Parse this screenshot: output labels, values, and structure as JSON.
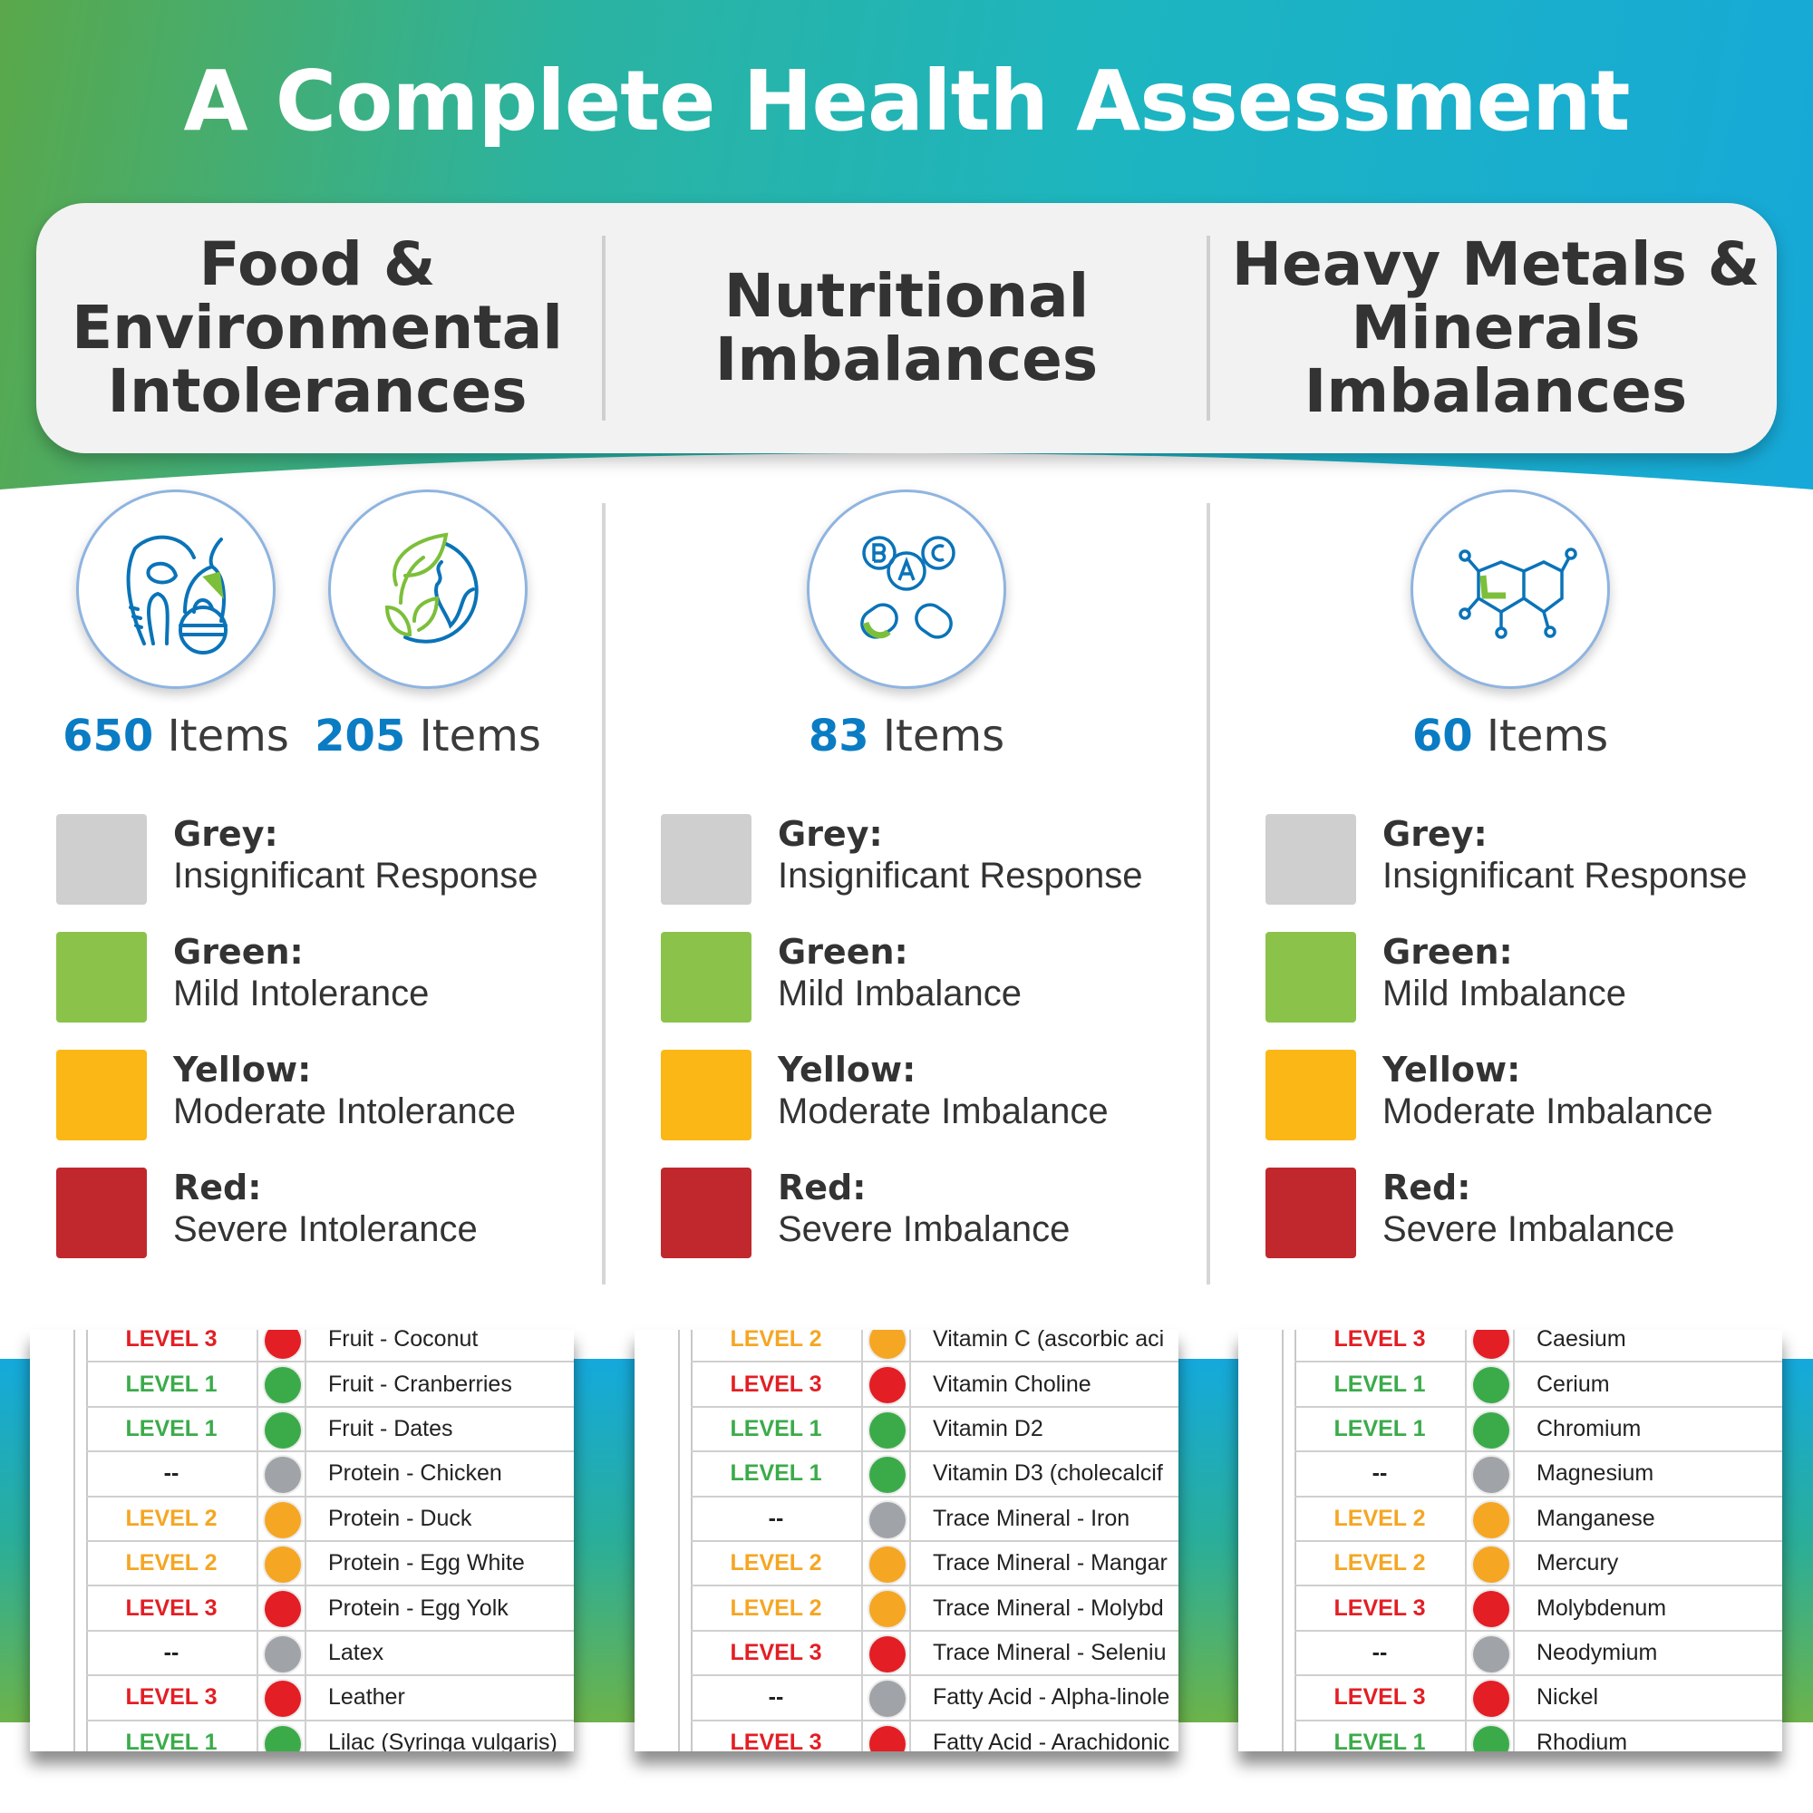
{
  "title": "A Complete Health Assessment",
  "colors": {
    "grey": "#cfcfcf",
    "green": "#8bc34a",
    "yellow": "#fbb715",
    "red": "#c0282d",
    "accent_blue": "#0a7cc4",
    "level1": "#3bab4a",
    "level2": "#f5a623",
    "level3": "#e31e24",
    "none": "#a0a3a8"
  },
  "columns": [
    {
      "heading": "Food & Environmental Intolerances",
      "counts": [
        {
          "number": "650",
          "unit": "Items",
          "icon": "food-icon"
        },
        {
          "number": "205",
          "unit": "Items",
          "icon": "environment-globe-icon"
        }
      ],
      "legend": [
        {
          "label": "Grey:",
          "desc": "Insignificant Response"
        },
        {
          "label": "Green:",
          "desc": "Mild Intolerance"
        },
        {
          "label": "Yellow:",
          "desc": "Moderate Intolerance"
        },
        {
          "label": "Red:",
          "desc": "Severe Intolerance"
        }
      ],
      "rows": [
        {
          "level": "LEVEL 3",
          "sev": 3,
          "item": "Fruit - Coconut"
        },
        {
          "level": "LEVEL 1",
          "sev": 1,
          "item": "Fruit - Cranberries"
        },
        {
          "level": "LEVEL 1",
          "sev": 1,
          "item": "Fruit - Dates"
        },
        {
          "level": "--",
          "sev": 0,
          "item": "Protein - Chicken"
        },
        {
          "level": "LEVEL 2",
          "sev": 2,
          "item": "Protein - Duck"
        },
        {
          "level": "LEVEL 2",
          "sev": 2,
          "item": "Protein - Egg White"
        },
        {
          "level": "LEVEL 3",
          "sev": 3,
          "item": "Protein - Egg Yolk"
        },
        {
          "level": "--",
          "sev": 0,
          "item": "Latex"
        },
        {
          "level": "LEVEL 3",
          "sev": 3,
          "item": "Leather"
        },
        {
          "level": "LEVEL 1",
          "sev": 1,
          "item": "Lilac (Syringa vulgaris)"
        }
      ]
    },
    {
      "heading": "Nutritional Imbalances",
      "counts": [
        {
          "number": "83",
          "unit": "Items",
          "icon": "vitamins-icon"
        }
      ],
      "legend": [
        {
          "label": "Grey:",
          "desc": "Insignificant Response"
        },
        {
          "label": "Green:",
          "desc": "Mild Imbalance"
        },
        {
          "label": "Yellow:",
          "desc": "Moderate Imbalance"
        },
        {
          "label": "Red:",
          "desc": "Severe Imbalance"
        }
      ],
      "rows": [
        {
          "level": "LEVEL 2",
          "sev": 2,
          "item": "Vitamin C (ascorbic aci"
        },
        {
          "level": "LEVEL 3",
          "sev": 3,
          "item": "Vitamin Choline"
        },
        {
          "level": "LEVEL 1",
          "sev": 1,
          "item": "Vitamin D2"
        },
        {
          "level": "LEVEL 1",
          "sev": 1,
          "item": "Vitamin D3 (cholecalcif"
        },
        {
          "level": "--",
          "sev": 0,
          "item": "Trace Mineral - Iron"
        },
        {
          "level": "LEVEL 2",
          "sev": 2,
          "item": "Trace Mineral - Mangar"
        },
        {
          "level": "LEVEL 2",
          "sev": 2,
          "item": "Trace Mineral - Molybd"
        },
        {
          "level": "LEVEL 3",
          "sev": 3,
          "item": "Trace Mineral - Seleniu"
        },
        {
          "level": "--",
          "sev": 0,
          "item": "Fatty Acid - Alpha-linole"
        },
        {
          "level": "LEVEL 3",
          "sev": 3,
          "item": "Fatty Acid - Arachidonic"
        }
      ]
    },
    {
      "heading": "Heavy Metals & Minerals Imbalances",
      "counts": [
        {
          "number": "60",
          "unit": "Items",
          "icon": "molecule-icon"
        }
      ],
      "legend": [
        {
          "label": "Grey:",
          "desc": "Insignificant Response"
        },
        {
          "label": "Green:",
          "desc": "Mild Imbalance"
        },
        {
          "label": "Yellow:",
          "desc": "Moderate Imbalance"
        },
        {
          "label": "Red:",
          "desc": "Severe Imbalance"
        }
      ],
      "rows": [
        {
          "level": "LEVEL 3",
          "sev": 3,
          "item": "Caesium"
        },
        {
          "level": "LEVEL 1",
          "sev": 1,
          "item": "Cerium"
        },
        {
          "level": "LEVEL 1",
          "sev": 1,
          "item": "Chromium"
        },
        {
          "level": "--",
          "sev": 0,
          "item": "Magnesium"
        },
        {
          "level": "LEVEL 2",
          "sev": 2,
          "item": "Manganese"
        },
        {
          "level": "LEVEL 2",
          "sev": 2,
          "item": "Mercury"
        },
        {
          "level": "LEVEL 3",
          "sev": 3,
          "item": "Molybdenum"
        },
        {
          "level": "--",
          "sev": 0,
          "item": "Neodymium"
        },
        {
          "level": "LEVEL 3",
          "sev": 3,
          "item": "Nickel"
        },
        {
          "level": "LEVEL 1",
          "sev": 1,
          "item": "Rhodium"
        }
      ]
    }
  ]
}
